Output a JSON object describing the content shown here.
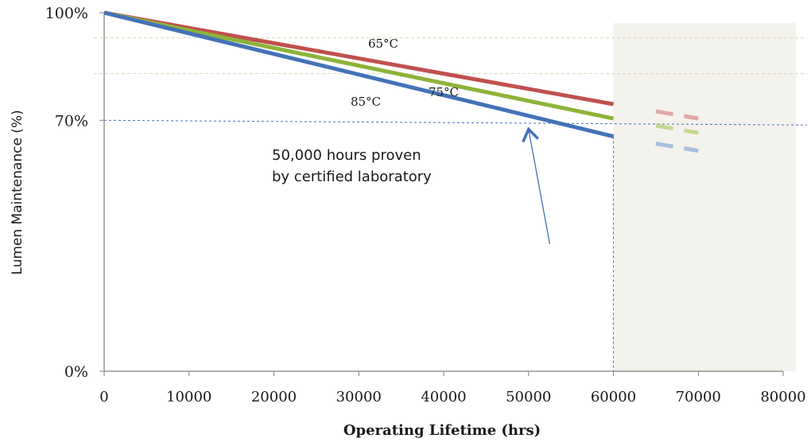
{
  "chart_data": {
    "type": "line",
    "xlabel": "Operating Lifetime (hrs)",
    "ylabel": "Lumen Maintenance (%)",
    "xlim": [
      0,
      80000
    ],
    "ylim": [
      0,
      100
    ],
    "x_ticks": [
      "0",
      "10000",
      "20000",
      "30000",
      "40000",
      "50000",
      "60000",
      "70000",
      "80000"
    ],
    "y_ticks": [
      {
        "value": 100,
        "label": "100%"
      },
      {
        "value": 70,
        "label": "70%"
      },
      {
        "value": 0,
        "label": "0%"
      }
    ],
    "series": [
      {
        "name": "65°C",
        "color": "#c0504d",
        "x": [
          0,
          60000
        ],
        "y": [
          100,
          74.5
        ],
        "projection": {
          "x": [
            65000,
            70000
          ],
          "y": [
            72.5,
            70.5
          ]
        }
      },
      {
        "name": "75°C",
        "color": "#8db33a",
        "x": [
          0,
          60000
        ],
        "y": [
          100,
          70.5
        ],
        "projection": {
          "x": [
            65000,
            70000
          ],
          "y": [
            68.5,
            66.5
          ]
        }
      },
      {
        "name": "85°C",
        "color": "#4472b8",
        "x": [
          0,
          60000
        ],
        "y": [
          100,
          65.5
        ],
        "projection": {
          "x": [
            65000,
            70000
          ],
          "y": [
            63.5,
            61.5
          ]
        }
      }
    ],
    "reference_lines": {
      "seventy_percent": 70,
      "sixty_thousand_hrs": 60000,
      "faint_levels": [
        93,
        83
      ]
    },
    "projection_region": {
      "x": [
        60000,
        81500
      ],
      "color": "#f4f2ed"
    },
    "annotation": {
      "lines": [
        "50,000 hours proven",
        "by certified laboratory"
      ],
      "arrow_from": [
        52500,
        35.5
      ],
      "arrow_to": [
        50000,
        67.5
      ]
    }
  }
}
